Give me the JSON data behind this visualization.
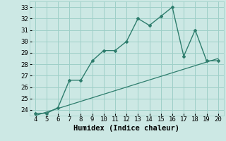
{
  "title": "",
  "xlabel": "Humidex (Indice chaleur)",
  "ylabel": "",
  "x_data": [
    4,
    5,
    6,
    7,
    8,
    9,
    10,
    11,
    12,
    13,
    14,
    15,
    16,
    17,
    18,
    19,
    20
  ],
  "y_data": [
    23.7,
    23.7,
    24.2,
    26.6,
    26.6,
    28.3,
    29.2,
    29.2,
    30.0,
    32.0,
    31.4,
    32.2,
    33.0,
    28.7,
    31.0,
    28.3,
    28.3
  ],
  "trend_x": [
    4,
    20
  ],
  "trend_y": [
    23.5,
    28.5
  ],
  "line_color": "#2e7d6d",
  "bg_color": "#cce8e4",
  "grid_color": "#9ecfc8",
  "ylim": [
    23.5,
    33.5
  ],
  "xlim": [
    3.5,
    20.5
  ],
  "yticks": [
    24,
    25,
    26,
    27,
    28,
    29,
    30,
    31,
    32,
    33
  ],
  "xticks": [
    4,
    5,
    6,
    7,
    8,
    9,
    10,
    11,
    12,
    13,
    14,
    15,
    16,
    17,
    18,
    19,
    20
  ],
  "tick_fontsize": 6.5,
  "xlabel_fontsize": 7.5
}
